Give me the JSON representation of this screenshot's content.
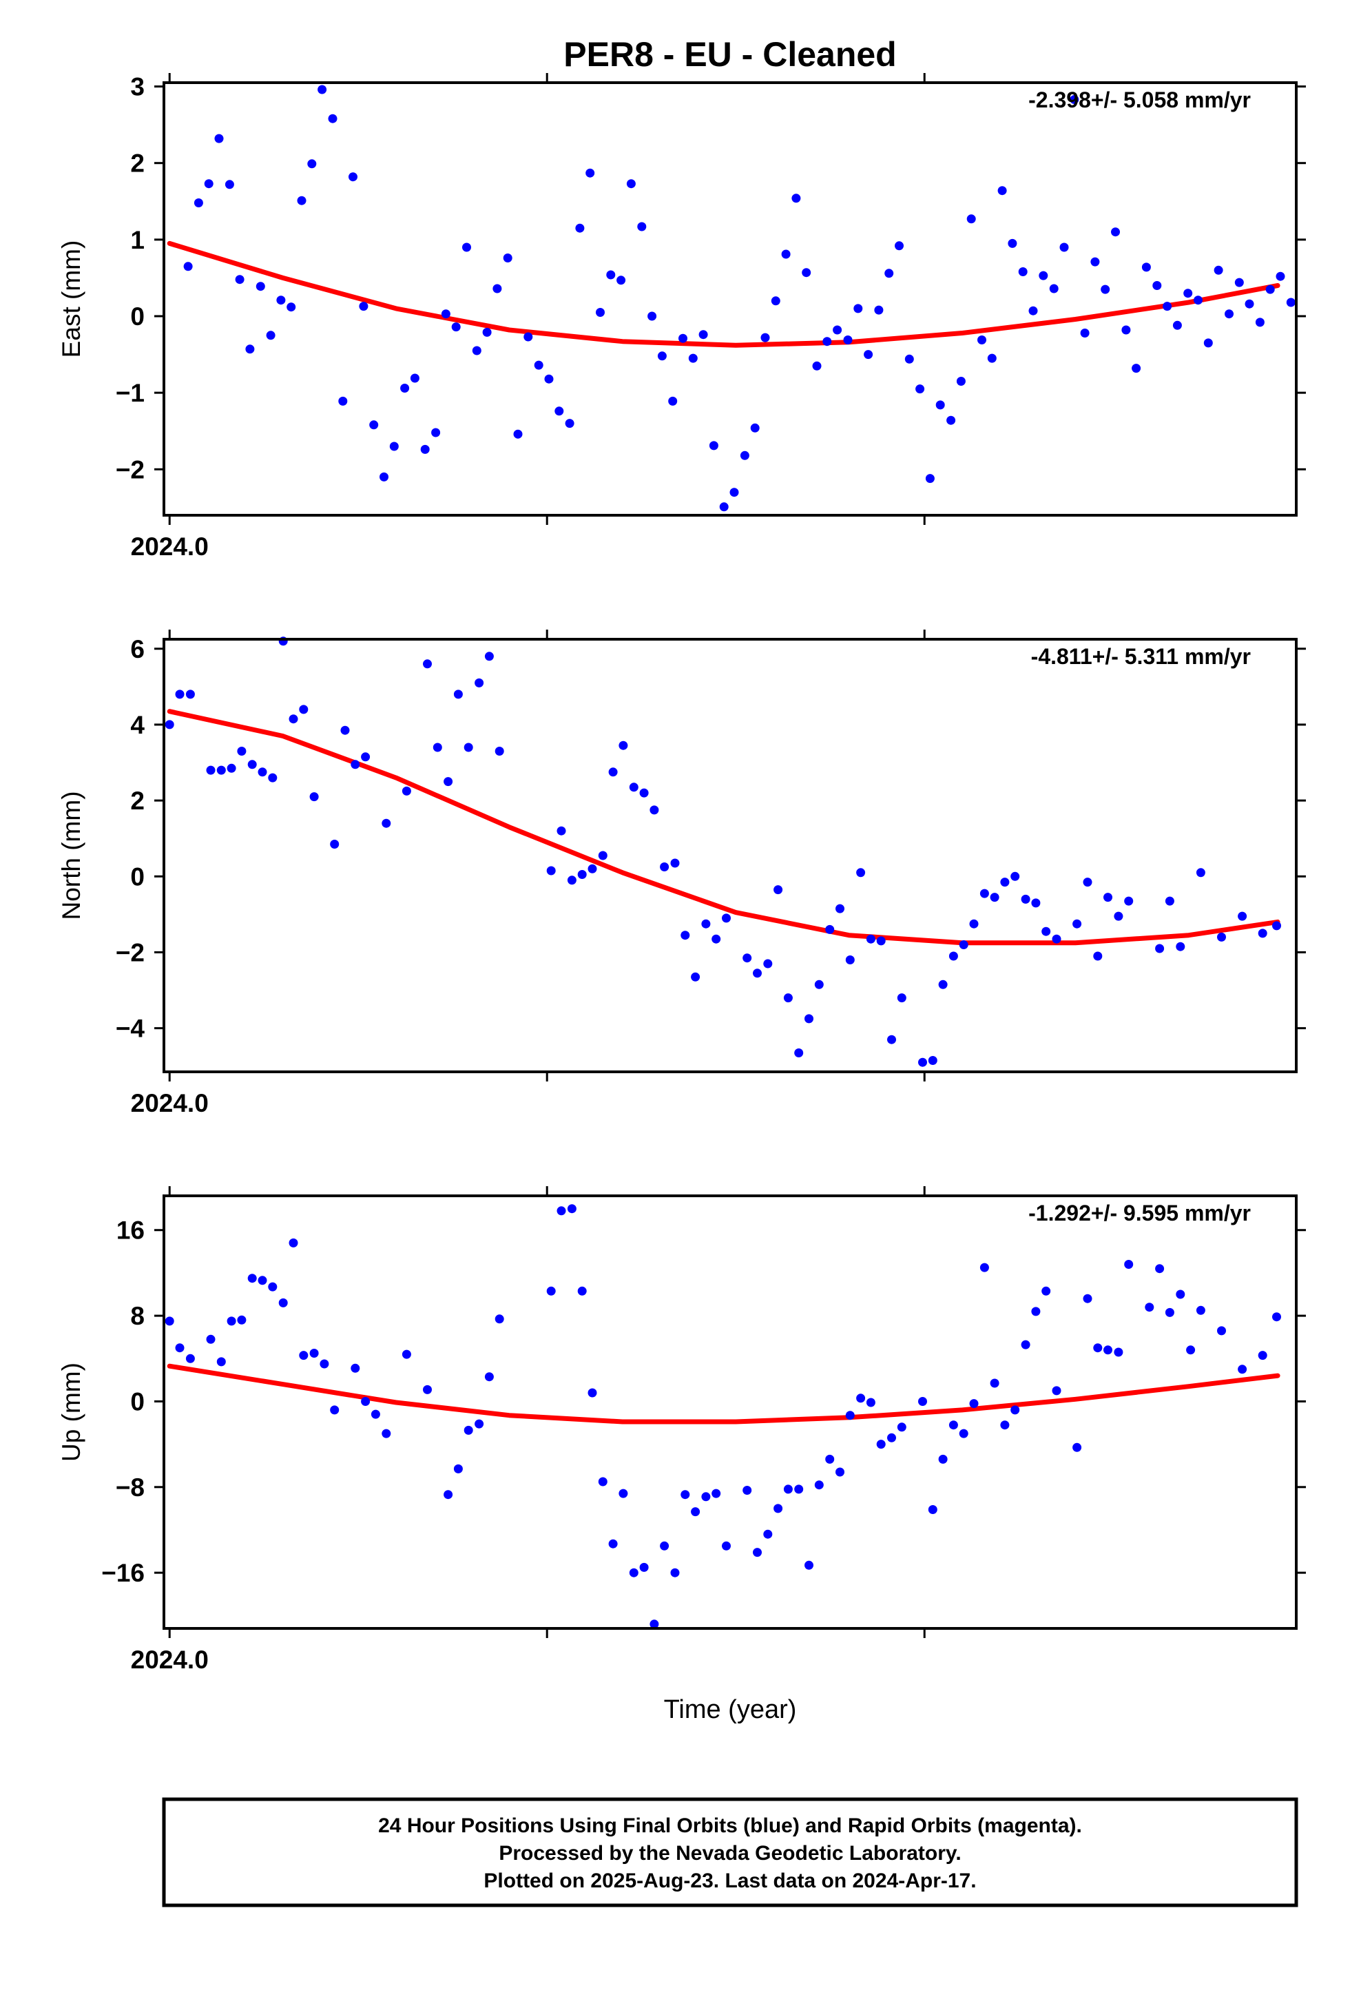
{
  "title": "PER8  - EU - Cleaned",
  "x_axis_label": "Time (year)",
  "footer": {
    "line1": "24 Hour Positions Using Final Orbits (blue) and Rapid Orbits (magenta).",
    "line2": "Processed by the Nevada Geodetic Laboratory.",
    "line3": "Plotted on 2025-Aug-23. Last data on 2024-Apr-17."
  },
  "colors": {
    "final_orbits": "#0000ff",
    "rapid_orbits": "#ff00ff",
    "model_fit": "#ff0000",
    "frame": "#000000"
  },
  "chart_data": [
    {
      "type": "scatter",
      "ylabel": "East (mm)",
      "rate": "-2.398+/- 5.058 mm/yr",
      "xlim": [
        2023.9985,
        2024.2985
      ],
      "ylim": [
        -2.6,
        3.05
      ],
      "yticks": [
        -2,
        -1,
        0,
        1,
        2,
        3
      ],
      "xtick_label": "2024.0",
      "x": [
        2024.0049,
        2024.0077,
        2024.0104,
        2024.0131,
        2024.0159,
        2024.0186,
        2024.0213,
        2024.0241,
        2024.0268,
        2024.0295,
        2024.0322,
        2024.035,
        2024.0377,
        2024.0404,
        2024.0432,
        2024.0459,
        2024.0486,
        2024.0514,
        2024.0541,
        2024.0568,
        2024.0595,
        2024.0623,
        2024.065,
        2024.0677,
        2024.0705,
        2024.0732,
        2024.0759,
        2024.0787,
        2024.0814,
        2024.0841,
        2024.0868,
        2024.0896,
        2024.0923,
        2024.095,
        2024.0978,
        2024.1005,
        2024.1032,
        2024.106,
        2024.1087,
        2024.1114,
        2024.1141,
        2024.1169,
        2024.1196,
        2024.1223,
        2024.1251,
        2024.1278,
        2024.1305,
        2024.1333,
        2024.136,
        2024.1387,
        2024.1414,
        2024.1442,
        2024.1469,
        2024.1496,
        2024.1524,
        2024.1551,
        2024.1578,
        2024.1606,
        2024.1633,
        2024.166,
        2024.1687,
        2024.1715,
        2024.1742,
        2024.1769,
        2024.1797,
        2024.1824,
        2024.1851,
        2024.1879,
        2024.1906,
        2024.1933,
        2024.196,
        2024.1988,
        2024.2015,
        2024.2042,
        2024.207,
        2024.2097,
        2024.2124,
        2024.2152,
        2024.2179,
        2024.2206,
        2024.2233,
        2024.2261,
        2024.2288,
        2024.2315,
        2024.2343,
        2024.237,
        2024.2397,
        2024.2425,
        2024.2452,
        2024.2479,
        2024.2506,
        2024.2534,
        2024.2561,
        2024.2588,
        2024.2616,
        2024.2643,
        2024.267,
        2024.2698,
        2024.2725,
        2024.2752,
        2024.2779,
        2024.2807,
        2024.2834,
        2024.2861,
        2024.2889,
        2024.2916,
        2024.2943,
        2024.2971
      ],
      "values": [
        0.65,
        1.48,
        1.73,
        2.32,
        1.72,
        0.48,
        -0.43,
        0.39,
        -0.25,
        0.21,
        0.12,
        1.51,
        1.99,
        2.96,
        2.58,
        -1.11,
        1.82,
        0.13,
        -1.42,
        -2.1,
        -1.7,
        -0.94,
        -0.81,
        -1.74,
        -1.52,
        0.03,
        -0.14,
        0.9,
        -0.45,
        -0.21,
        0.36,
        0.76,
        -1.54,
        -0.27,
        -0.64,
        -0.82,
        -1.24,
        -1.4,
        1.15,
        1.87,
        0.05,
        0.54,
        0.47,
        1.73,
        1.17,
        0.0,
        -0.52,
        -1.11,
        -0.29,
        -0.55,
        -0.24,
        -1.69,
        -2.49,
        -2.3,
        -1.82,
        -1.46,
        -0.28,
        0.2,
        0.81,
        1.54,
        0.57,
        -0.65,
        -0.33,
        -0.18,
        -0.31,
        0.1,
        -0.5,
        0.08,
        0.56,
        0.92,
        -0.56,
        -0.95,
        -2.12,
        -1.16,
        -1.36,
        -0.85,
        1.27,
        -0.31,
        -0.55,
        1.64,
        0.95,
        0.58,
        0.07,
        0.53,
        0.36,
        0.9,
        2.83,
        -0.22,
        0.71,
        0.35,
        1.1,
        -0.18,
        -0.68,
        0.64,
        0.4,
        0.13,
        -0.12,
        0.3,
        0.21,
        -0.35,
        0.6,
        0.03,
        0.44,
        0.16,
        -0.08,
        0.35,
        0.52,
        0.18
      ],
      "model": {
        "type": "line",
        "x": [
          2024.0,
          2024.03,
          2024.06,
          2024.09,
          2024.12,
          2024.15,
          2024.18,
          2024.21,
          2024.24,
          2024.27,
          2024.2936
        ],
        "values": [
          0.95,
          0.5,
          0.1,
          -0.18,
          -0.33,
          -0.38,
          -0.34,
          -0.22,
          -0.04,
          0.18,
          0.4
        ]
      }
    },
    {
      "type": "scatter",
      "ylabel": "North (mm)",
      "rate": "-4.811+/- 5.311 mm/yr",
      "xlim": [
        2023.9985,
        2024.2985
      ],
      "ylim": [
        -5.15,
        6.25
      ],
      "yticks": [
        -4,
        -2,
        0,
        2,
        4,
        6
      ],
      "xtick_label": "2024.0",
      "x": [
        2024.0,
        2024.0027,
        2024.0055,
        2024.0109,
        2024.0137,
        2024.0164,
        2024.0191,
        2024.0219,
        2024.0246,
        2024.0273,
        2024.0301,
        2024.0328,
        2024.0355,
        2024.0383,
        2024.0437,
        2024.0465,
        2024.0492,
        2024.0519,
        2024.0574,
        2024.0628,
        2024.0683,
        2024.071,
        2024.0738,
        2024.0765,
        2024.0792,
        2024.082,
        2024.0847,
        2024.0874,
        2024.1011,
        2024.1038,
        2024.1066,
        2024.1093,
        2024.112,
        2024.1148,
        2024.1175,
        2024.1202,
        2024.123,
        2024.1257,
        2024.1284,
        2024.1311,
        2024.1339,
        2024.1366,
        2024.1393,
        2024.1421,
        2024.1448,
        2024.1475,
        2024.153,
        2024.1557,
        2024.1585,
        2024.1612,
        2024.1639,
        2024.1667,
        2024.1694,
        2024.1721,
        2024.1749,
        2024.1776,
        2024.1803,
        2024.1831,
        2024.1858,
        2024.1885,
        2024.1913,
        2024.194,
        2024.1995,
        2024.2022,
        2024.2049,
        2024.2077,
        2024.2104,
        2024.2131,
        2024.2159,
        2024.2186,
        2024.2213,
        2024.224,
        2024.2268,
        2024.2295,
        2024.2322,
        2024.235,
        2024.2404,
        2024.2432,
        2024.2459,
        2024.2486,
        2024.2514,
        2024.2541,
        2024.2623,
        2024.265,
        2024.2678,
        2024.2732,
        2024.2787,
        2024.2842,
        2024.2896,
        2024.2933
      ],
      "values": [
        4.0,
        4.8,
        4.8,
        2.8,
        2.8,
        2.85,
        3.3,
        2.95,
        2.75,
        2.6,
        6.2,
        4.15,
        4.4,
        2.1,
        0.85,
        3.85,
        2.95,
        3.15,
        1.4,
        2.25,
        5.6,
        3.4,
        2.5,
        4.8,
        3.4,
        5.1,
        5.8,
        3.3,
        0.15,
        1.2,
        -0.1,
        0.05,
        0.2,
        0.55,
        2.75,
        3.45,
        2.35,
        2.2,
        1.75,
        0.25,
        0.35,
        -1.55,
        -2.65,
        -1.25,
        -1.65,
        -1.1,
        -2.15,
        -2.55,
        -2.3,
        -0.35,
        -3.2,
        -4.65,
        -3.75,
        -2.85,
        -1.4,
        -0.85,
        -2.2,
        0.1,
        -1.65,
        -1.7,
        -4.3,
        -3.2,
        -4.9,
        -4.85,
        -2.85,
        -2.1,
        -1.8,
        -1.25,
        -0.45,
        -0.55,
        -0.15,
        0.0,
        -0.6,
        -0.7,
        -1.45,
        -1.65,
        -1.25,
        -0.15,
        -2.1,
        -0.55,
        -1.05,
        -0.65,
        -1.9,
        -0.65,
        -1.85,
        0.1,
        -1.6,
        -1.05,
        -1.5,
        -1.3
      ],
      "model": {
        "type": "line",
        "x": [
          2024.0,
          2024.03,
          2024.06,
          2024.09,
          2024.12,
          2024.15,
          2024.18,
          2024.21,
          2024.24,
          2024.27,
          2024.2936
        ],
        "values": [
          4.35,
          3.7,
          2.6,
          1.3,
          0.1,
          -0.95,
          -1.55,
          -1.75,
          -1.75,
          -1.55,
          -1.2
        ]
      }
    },
    {
      "type": "scatter",
      "ylabel": "Up (mm)",
      "rate": "-1.292+/- 9.595 mm/yr",
      "xlim": [
        2023.9985,
        2024.2985
      ],
      "ylim": [
        -21.2,
        19.2
      ],
      "yticks": [
        -16,
        -8,
        0,
        8,
        16
      ],
      "xtick_label": "2024.0",
      "x": [
        2024.0,
        2024.0027,
        2024.0055,
        2024.0109,
        2024.0137,
        2024.0164,
        2024.0191,
        2024.0219,
        2024.0246,
        2024.0273,
        2024.0301,
        2024.0328,
        2024.0355,
        2024.0383,
        2024.041,
        2024.0437,
        2024.0492,
        2024.0519,
        2024.0546,
        2024.0574,
        2024.0628,
        2024.0683,
        2024.0738,
        2024.0765,
        2024.0792,
        2024.082,
        2024.0847,
        2024.0874,
        2024.1011,
        2024.1038,
        2024.1066,
        2024.1093,
        2024.112,
        2024.1148,
        2024.1175,
        2024.1202,
        2024.123,
        2024.1257,
        2024.1284,
        2024.1311,
        2024.1339,
        2024.1366,
        2024.1393,
        2024.1421,
        2024.1448,
        2024.1475,
        2024.153,
        2024.1557,
        2024.1585,
        2024.1612,
        2024.1639,
        2024.1667,
        2024.1694,
        2024.1721,
        2024.1749,
        2024.1776,
        2024.1803,
        2024.1831,
        2024.1858,
        2024.1885,
        2024.1913,
        2024.194,
        2024.1995,
        2024.2022,
        2024.2049,
        2024.2077,
        2024.2104,
        2024.2131,
        2024.2159,
        2024.2186,
        2024.2213,
        2024.224,
        2024.2268,
        2024.2295,
        2024.2322,
        2024.235,
        2024.2404,
        2024.2432,
        2024.2459,
        2024.2486,
        2024.2514,
        2024.2541,
        2024.2596,
        2024.2623,
        2024.265,
        2024.2678,
        2024.2705,
        2024.2732,
        2024.2787,
        2024.2842,
        2024.2896,
        2024.2933
      ],
      "values": [
        7.5,
        5.0,
        4.0,
        5.8,
        3.7,
        7.5,
        7.6,
        11.5,
        11.3,
        10.7,
        9.2,
        14.8,
        4.3,
        4.5,
        3.5,
        -0.8,
        3.1,
        0.0,
        -1.2,
        -3.0,
        4.4,
        1.1,
        -8.7,
        -6.3,
        -2.7,
        -2.1,
        2.3,
        7.7,
        10.3,
        17.8,
        18.0,
        10.3,
        0.8,
        -7.5,
        -13.3,
        -8.6,
        -16.0,
        -15.5,
        -20.8,
        -13.5,
        -16.0,
        -8.7,
        -10.3,
        -8.9,
        -8.6,
        -13.5,
        -8.3,
        -14.1,
        -12.4,
        -10.0,
        -8.2,
        -8.2,
        -15.3,
        -7.8,
        -5.4,
        -6.6,
        -1.3,
        0.3,
        -0.1,
        -4.0,
        -3.4,
        -2.4,
        0.0,
        -10.1,
        -5.4,
        -2.2,
        -3.0,
        -0.2,
        12.5,
        1.7,
        -2.2,
        -0.8,
        5.3,
        8.4,
        10.3,
        1.0,
        -4.3,
        9.6,
        5.0,
        4.8,
        4.6,
        12.8,
        8.8,
        12.4,
        8.3,
        10.0,
        4.8,
        8.5,
        6.6,
        3.0,
        4.3,
        7.9
      ],
      "model": {
        "type": "line",
        "x": [
          2024.0,
          2024.03,
          2024.06,
          2024.09,
          2024.12,
          2024.15,
          2024.18,
          2024.21,
          2024.24,
          2024.27,
          2024.2936
        ],
        "values": [
          3.3,
          1.6,
          -0.1,
          -1.3,
          -1.9,
          -1.9,
          -1.5,
          -0.8,
          0.2,
          1.4,
          2.4
        ]
      }
    }
  ]
}
